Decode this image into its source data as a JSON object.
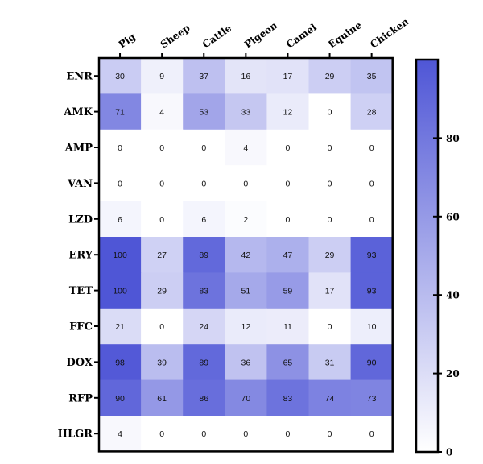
{
  "chart_data": {
    "type": "heatmap",
    "title": "",
    "xlabel": "",
    "ylabel": "",
    "columns": [
      "Pig",
      "Sheep",
      "Cattle",
      "Pigeon",
      "Camel",
      "Equine",
      "Chicken"
    ],
    "rows": [
      "ENR",
      "AMK",
      "AMP",
      "VAN",
      "LZD",
      "ERY",
      "TET",
      "FFC",
      "DOX",
      "RFP",
      "HLGR"
    ],
    "values": [
      [
        30,
        9,
        37,
        16,
        17,
        29,
        35
      ],
      [
        71,
        4,
        53,
        33,
        12,
        0,
        28
      ],
      [
        0,
        0,
        0,
        4,
        0,
        0,
        0
      ],
      [
        0,
        0,
        0,
        0,
        0,
        0,
        0
      ],
      [
        6,
        0,
        6,
        2,
        0,
        0,
        0
      ],
      [
        100,
        27,
        89,
        42,
        47,
        29,
        93
      ],
      [
        100,
        29,
        83,
        51,
        59,
        17,
        93
      ],
      [
        21,
        0,
        24,
        12,
        11,
        0,
        10
      ],
      [
        98,
        39,
        89,
        36,
        65,
        31,
        90
      ],
      [
        90,
        61,
        86,
        70,
        83,
        74,
        73
      ],
      [
        4,
        0,
        0,
        0,
        0,
        0,
        0
      ]
    ],
    "colorbar": {
      "min": 0,
      "max": 100,
      "ticks": [
        0,
        20,
        40,
        60,
        80
      ],
      "low_color": "#ffffff",
      "high_color": "#4f56d6"
    },
    "legend_placement": "right",
    "grid": false
  }
}
